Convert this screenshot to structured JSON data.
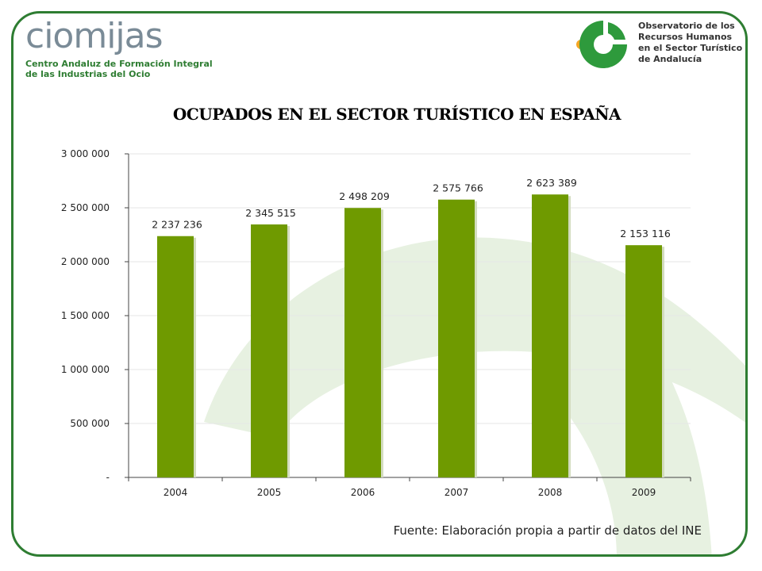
{
  "header": {
    "brand_name": "ciomijas",
    "brand_subtitle_line1": "Centro Andaluz de Formación Integral",
    "brand_subtitle_line2": "de las Industrias del Ocio",
    "observatory_text": "Observatorio de los\nRecursos Humanos\nen el Sector Turístico\nde Andalucía"
  },
  "colors": {
    "frame": "#2e7d32",
    "bar": "#6f9a00",
    "bar_shadow": "#d3dcc0",
    "swirl": "#e7f1e1",
    "logo_green": "#2e9a3c",
    "logo_orange": "#f5a623"
  },
  "chart_data": {
    "type": "bar",
    "title": "OCUPADOS EN EL SECTOR TURÍSTICO EN ESPAÑA",
    "categories": [
      "2004",
      "2005",
      "2006",
      "2007",
      "2008",
      "2009"
    ],
    "values": [
      2237236,
      2345515,
      2498209,
      2575766,
      2623389,
      2153116
    ],
    "value_labels": [
      "2 237 236",
      "2 345 515",
      "2 498 209",
      "2 575 766",
      "2 623 389",
      "2 153 116"
    ],
    "ylim": [
      0,
      3000000
    ],
    "y_ticks": [
      0,
      500000,
      1000000,
      1500000,
      2000000,
      2500000,
      3000000
    ],
    "y_tick_labels": [
      "-",
      "500 000",
      "1 000 000",
      "1 500 000",
      "2 000 000",
      "2 500 000",
      "3 000 000"
    ],
    "grid": true,
    "xlabel": "",
    "ylabel": ""
  },
  "source": "Fuente: Elaboración propia a partir de datos del INE"
}
